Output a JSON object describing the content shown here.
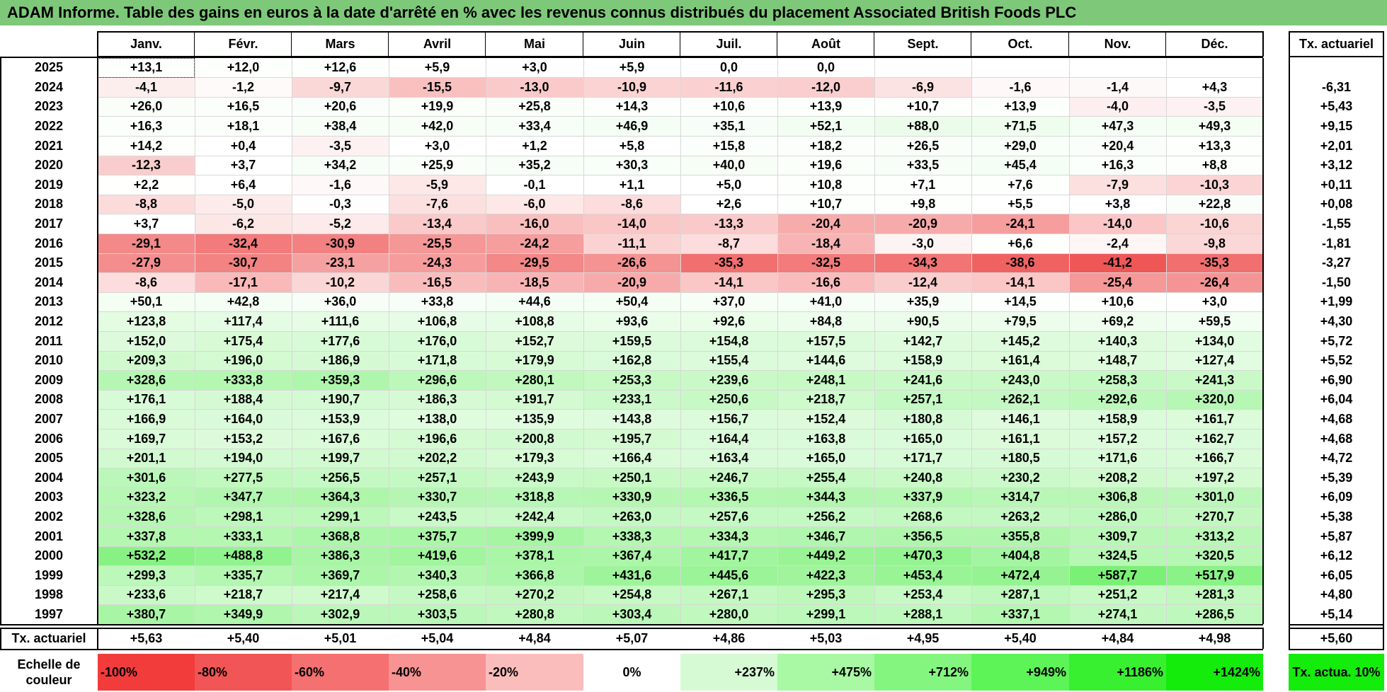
{
  "title": "ADAM Informe. Table des gains en euros à la date d'arrêté en % avec les revenus connus distribués du placement Associated British Foods PLC",
  "months": [
    "Janv.",
    "Févr.",
    "Mars",
    "Avril",
    "Mai",
    "Juin",
    "Juil.",
    "Août",
    "Sept.",
    "Oct.",
    "Nov.",
    "Déc."
  ],
  "ta_header": "Tx. actuariel",
  "rows": [
    {
      "year": "2025",
      "values": [
        "+13,1",
        "+12,0",
        "+12,6",
        "+5,9",
        "+3,0",
        "+5,9",
        "0,0",
        "0,0",
        "",
        "",
        "",
        ""
      ],
      "ta": ""
    },
    {
      "year": "2024",
      "values": [
        "-4,1",
        "-1,2",
        "-9,7",
        "-15,5",
        "-13,0",
        "-10,9",
        "-11,6",
        "-12,0",
        "-6,9",
        "-1,6",
        "-1,4",
        "+4,3"
      ],
      "ta": "-6,31"
    },
    {
      "year": "2023",
      "values": [
        "+26,0",
        "+16,5",
        "+20,6",
        "+19,9",
        "+25,8",
        "+14,3",
        "+10,6",
        "+13,9",
        "+10,7",
        "+13,9",
        "-4,0",
        "-3,5"
      ],
      "ta": "+5,43"
    },
    {
      "year": "2022",
      "values": [
        "+16,3",
        "+18,1",
        "+38,4",
        "+42,0",
        "+33,4",
        "+46,9",
        "+35,1",
        "+52,1",
        "+88,0",
        "+71,5",
        "+47,3",
        "+49,3"
      ],
      "ta": "+9,15"
    },
    {
      "year": "2021",
      "values": [
        "+14,2",
        "+0,4",
        "-3,5",
        "+3,0",
        "+1,2",
        "+5,8",
        "+15,8",
        "+18,2",
        "+26,5",
        "+29,0",
        "+20,4",
        "+13,3"
      ],
      "ta": "+2,01"
    },
    {
      "year": "2020",
      "values": [
        "-12,3",
        "+3,7",
        "+34,2",
        "+25,9",
        "+35,2",
        "+30,3",
        "+40,0",
        "+19,6",
        "+33,5",
        "+45,4",
        "+16,3",
        "+8,8"
      ],
      "ta": "+3,12"
    },
    {
      "year": "2019",
      "values": [
        "+2,2",
        "+6,4",
        "-1,6",
        "-5,9",
        "-0,1",
        "+1,1",
        "+5,0",
        "+10,8",
        "+7,1",
        "+7,6",
        "-7,9",
        "-10,3"
      ],
      "ta": "+0,11"
    },
    {
      "year": "2018",
      "values": [
        "-8,8",
        "-5,0",
        "-0,3",
        "-7,6",
        "-6,0",
        "-8,6",
        "+2,6",
        "+10,7",
        "+9,8",
        "+5,5",
        "+3,8",
        "+22,8"
      ],
      "ta": "+0,08"
    },
    {
      "year": "2017",
      "values": [
        "+3,7",
        "-6,2",
        "-5,2",
        "-13,4",
        "-16,0",
        "-14,0",
        "-13,3",
        "-20,4",
        "-20,9",
        "-24,1",
        "-14,0",
        "-10,6"
      ],
      "ta": "-1,55"
    },
    {
      "year": "2016",
      "values": [
        "-29,1",
        "-32,4",
        "-30,9",
        "-25,5",
        "-24,2",
        "-11,1",
        "-8,7",
        "-18,4",
        "-3,0",
        "+6,6",
        "-2,4",
        "-9,8"
      ],
      "ta": "-1,81"
    },
    {
      "year": "2015",
      "values": [
        "-27,9",
        "-30,7",
        "-23,1",
        "-24,3",
        "-29,5",
        "-26,6",
        "-35,3",
        "-32,5",
        "-34,3",
        "-38,6",
        "-41,2",
        "-35,3"
      ],
      "ta": "-3,27"
    },
    {
      "year": "2014",
      "values": [
        "-8,6",
        "-17,1",
        "-10,2",
        "-16,5",
        "-18,5",
        "-20,9",
        "-14,1",
        "-16,6",
        "-12,4",
        "-14,1",
        "-25,4",
        "-26,4"
      ],
      "ta": "-1,50"
    },
    {
      "year": "2013",
      "values": [
        "+50,1",
        "+42,8",
        "+36,0",
        "+33,8",
        "+44,6",
        "+50,4",
        "+37,0",
        "+41,0",
        "+35,9",
        "+14,5",
        "+10,6",
        "+3,0"
      ],
      "ta": "+1,99"
    },
    {
      "year": "2012",
      "values": [
        "+123,8",
        "+117,4",
        "+111,6",
        "+106,8",
        "+108,8",
        "+93,6",
        "+92,6",
        "+84,8",
        "+90,5",
        "+79,5",
        "+69,2",
        "+59,5"
      ],
      "ta": "+4,30"
    },
    {
      "year": "2011",
      "values": [
        "+152,0",
        "+175,4",
        "+177,6",
        "+176,0",
        "+152,7",
        "+159,5",
        "+154,8",
        "+157,5",
        "+142,7",
        "+145,2",
        "+140,3",
        "+134,0"
      ],
      "ta": "+5,72"
    },
    {
      "year": "2010",
      "values": [
        "+209,3",
        "+196,0",
        "+186,9",
        "+171,8",
        "+179,9",
        "+162,8",
        "+155,4",
        "+144,6",
        "+158,9",
        "+161,4",
        "+148,7",
        "+127,4"
      ],
      "ta": "+5,52"
    },
    {
      "year": "2009",
      "values": [
        "+328,6",
        "+333,8",
        "+359,3",
        "+296,6",
        "+280,1",
        "+253,3",
        "+239,6",
        "+248,1",
        "+241,6",
        "+243,0",
        "+258,3",
        "+241,3"
      ],
      "ta": "+6,90"
    },
    {
      "year": "2008",
      "values": [
        "+176,1",
        "+188,4",
        "+190,7",
        "+186,3",
        "+191,7",
        "+233,1",
        "+250,6",
        "+218,7",
        "+257,1",
        "+262,1",
        "+292,6",
        "+320,0"
      ],
      "ta": "+6,04"
    },
    {
      "year": "2007",
      "values": [
        "+166,9",
        "+164,0",
        "+153,9",
        "+138,0",
        "+135,9",
        "+143,8",
        "+156,7",
        "+152,4",
        "+180,8",
        "+146,1",
        "+158,9",
        "+161,7"
      ],
      "ta": "+4,68"
    },
    {
      "year": "2006",
      "values": [
        "+169,7",
        "+153,2",
        "+167,6",
        "+196,6",
        "+200,8",
        "+195,7",
        "+164,4",
        "+163,8",
        "+165,0",
        "+161,1",
        "+157,2",
        "+162,7"
      ],
      "ta": "+4,68"
    },
    {
      "year": "2005",
      "values": [
        "+201,1",
        "+194,0",
        "+199,7",
        "+202,2",
        "+179,3",
        "+166,4",
        "+163,4",
        "+165,0",
        "+171,7",
        "+180,5",
        "+171,6",
        "+166,7"
      ],
      "ta": "+4,72"
    },
    {
      "year": "2004",
      "values": [
        "+301,6",
        "+277,5",
        "+256,5",
        "+257,1",
        "+243,9",
        "+250,1",
        "+246,7",
        "+255,4",
        "+240,8",
        "+230,2",
        "+208,2",
        "+197,2"
      ],
      "ta": "+5,39"
    },
    {
      "year": "2003",
      "values": [
        "+323,2",
        "+347,7",
        "+364,3",
        "+330,7",
        "+318,8",
        "+330,9",
        "+336,5",
        "+344,3",
        "+337,9",
        "+314,7",
        "+306,8",
        "+301,0"
      ],
      "ta": "+6,09"
    },
    {
      "year": "2002",
      "values": [
        "+328,6",
        "+298,1",
        "+299,1",
        "+243,5",
        "+242,4",
        "+263,0",
        "+257,6",
        "+256,2",
        "+268,6",
        "+263,2",
        "+286,0",
        "+270,7"
      ],
      "ta": "+5,38"
    },
    {
      "year": "2001",
      "values": [
        "+337,8",
        "+333,1",
        "+368,8",
        "+375,7",
        "+399,9",
        "+338,3",
        "+334,3",
        "+346,7",
        "+356,5",
        "+355,8",
        "+309,7",
        "+313,2"
      ],
      "ta": "+5,87"
    },
    {
      "year": "2000",
      "values": [
        "+532,2",
        "+488,8",
        "+386,3",
        "+419,6",
        "+378,1",
        "+367,4",
        "+417,7",
        "+449,2",
        "+470,3",
        "+404,8",
        "+324,5",
        "+320,5"
      ],
      "ta": "+6,12"
    },
    {
      "year": "1999",
      "values": [
        "+299,3",
        "+335,7",
        "+369,7",
        "+340,3",
        "+366,8",
        "+431,6",
        "+445,6",
        "+422,3",
        "+453,4",
        "+472,4",
        "+587,7",
        "+517,9"
      ],
      "ta": "+6,05"
    },
    {
      "year": "1998",
      "values": [
        "+233,6",
        "+218,7",
        "+217,4",
        "+258,6",
        "+270,2",
        "+254,8",
        "+267,1",
        "+295,3",
        "+253,4",
        "+287,1",
        "+251,2",
        "+281,3"
      ],
      "ta": "+4,80"
    },
    {
      "year": "1997",
      "values": [
        "+380,7",
        "+349,9",
        "+302,9",
        "+303,5",
        "+280,8",
        "+303,4",
        "+280,0",
        "+299,1",
        "+288,1",
        "+337,1",
        "+274,1",
        "+286,5"
      ],
      "ta": "+5,14"
    }
  ],
  "footer": {
    "label": "Tx. actuariel",
    "values": [
      "+5,63",
      "+5,40",
      "+5,01",
      "+5,04",
      "+4,84",
      "+5,07",
      "+4,86",
      "+5,03",
      "+4,95",
      "+5,40",
      "+4,84",
      "+4,98"
    ],
    "ta": "+5,60"
  },
  "legend": {
    "label": "Echelle de couleur",
    "items": [
      {
        "text": "-100%",
        "color": "#f23c3c",
        "align": "left"
      },
      {
        "text": "-80%",
        "color": "#f25555",
        "align": "left"
      },
      {
        "text": "-60%",
        "color": "#f57070",
        "align": "left"
      },
      {
        "text": "-40%",
        "color": "#f79393",
        "align": "left"
      },
      {
        "text": "-20%",
        "color": "#fbbcbc",
        "align": "left"
      },
      {
        "text": "0%",
        "color": "#ffffff",
        "align": "center"
      },
      {
        "text": "+237%",
        "color": "#d6fbd4",
        "align": "right"
      },
      {
        "text": "+475%",
        "color": "#a8f8a4",
        "align": "right"
      },
      {
        "text": "+712%",
        "color": "#84f67f",
        "align": "right"
      },
      {
        "text": "+949%",
        "color": "#5cf456",
        "align": "right"
      },
      {
        "text": "+1186%",
        "color": "#38f030",
        "align": "right"
      },
      {
        "text": "+1424%",
        "color": "#14ec0c",
        "align": "right"
      }
    ],
    "ta_label": "Tx. actua. 10%",
    "ta_color": "#14ec0c"
  }
}
